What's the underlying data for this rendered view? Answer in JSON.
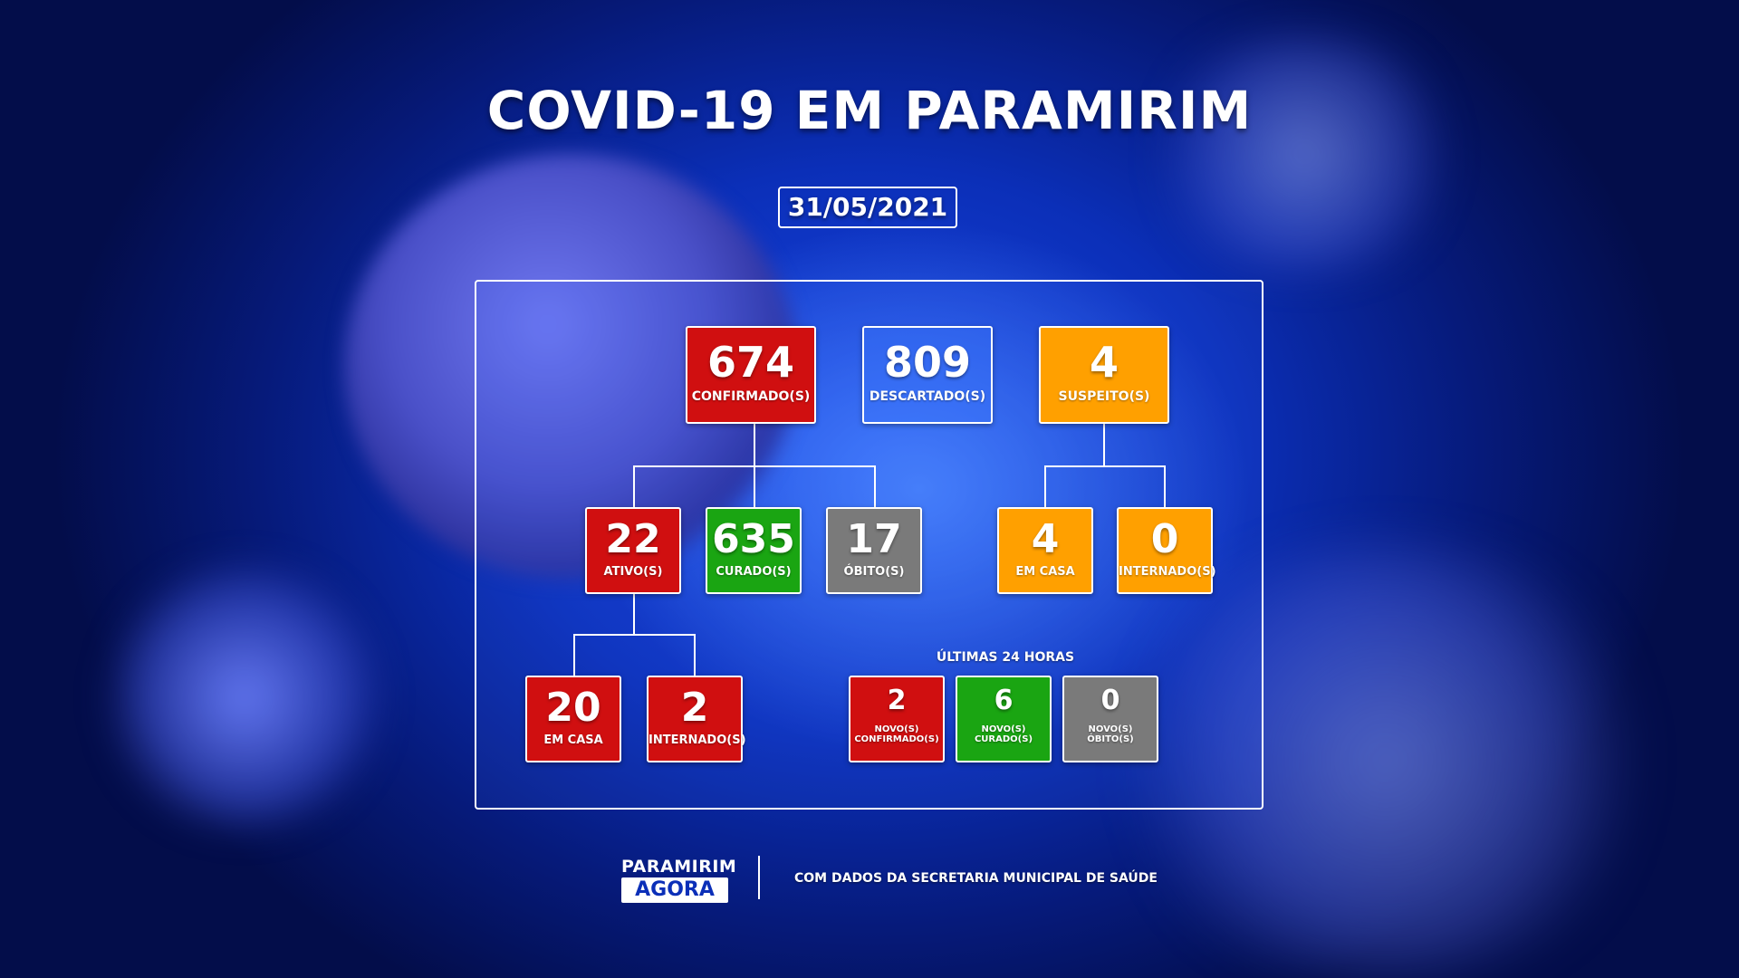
{
  "title": "COVID-19 EM PARAMIRIM",
  "date": "31/05/2021",
  "top_row": {
    "confirmed": {
      "value": "674",
      "label": "CONFIRMADO(S)"
    },
    "discarded": {
      "value": "809",
      "label": "DESCARTADO(S)"
    },
    "suspected": {
      "value": "4",
      "label": "SUSPEITO(S)"
    }
  },
  "confirmed_breakdown": {
    "active": {
      "value": "22",
      "label": "ATIVO(S)"
    },
    "cured": {
      "value": "635",
      "label": "CURADO(S)"
    },
    "deaths": {
      "value": "17",
      "label": "ÓBITO(S)"
    }
  },
  "suspected_breakdown": {
    "home": {
      "value": "4",
      "label": "EM CASA"
    },
    "hospitalized": {
      "value": "0",
      "label": "INTERNADO(S)"
    }
  },
  "active_breakdown": {
    "home": {
      "value": "20",
      "label": "EM CASA"
    },
    "hospitalized": {
      "value": "2",
      "label": "INTERNADO(S)"
    }
  },
  "last_24h": {
    "heading": "ÚLTIMAS 24 HORAS",
    "new_confirmed": {
      "value": "2",
      "label_1": "NOVO(S)",
      "label_2": "CONFIRMADO(S)"
    },
    "new_cured": {
      "value": "6",
      "label_1": "NOVO(S)",
      "label_2": "CURADO(S)"
    },
    "new_deaths": {
      "value": "0",
      "label_1": "NOVO(S)",
      "label_2": "ÓBITO(S)"
    }
  },
  "footer": {
    "logo_line1": "PARAMIRIM",
    "logo_line2": "AGORA",
    "credit": "COM DADOS DA SECRETARIA MUNICIPAL DE SAÚDE"
  },
  "colors": {
    "red": "#d00f10",
    "green": "#1aa512",
    "gray": "#7a7a7a",
    "orange": "#ffa000",
    "background": "#0b2fb8"
  }
}
